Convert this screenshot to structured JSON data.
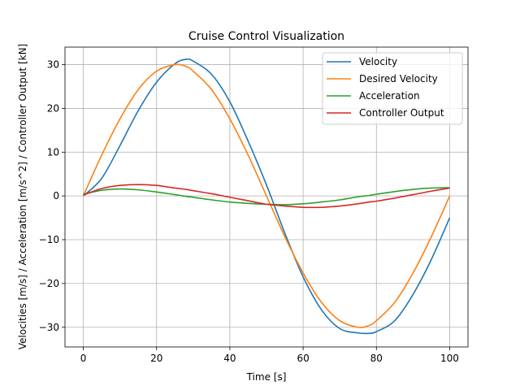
{
  "chart_data": {
    "type": "line",
    "title": "Cruise Control Visualization",
    "xlabel": "Time [s]",
    "ylabel": "Velocities [m/s] / Acceleration [m/s^2] / Controller Output [kN]",
    "xlim": [
      -5,
      105
    ],
    "ylim": [
      -34.5,
      34.0
    ],
    "xticks": [
      0,
      20,
      40,
      60,
      80,
      100
    ],
    "yticks": [
      -30,
      -20,
      -10,
      0,
      10,
      20,
      30
    ],
    "xtick_labels": [
      "0",
      "20",
      "40",
      "60",
      "80",
      "100"
    ],
    "ytick_labels": [
      "−30",
      "−20",
      "−10",
      "0",
      "10",
      "20",
      "30"
    ],
    "grid": true,
    "legend_position": "top-right",
    "x": [
      0,
      5,
      10,
      15,
      20,
      25,
      28,
      30,
      35,
      40,
      45,
      50,
      55,
      60,
      65,
      70,
      75,
      78,
      80,
      85,
      90,
      95,
      100
    ],
    "series": [
      {
        "name": "Velocity",
        "color": "#1f77b4",
        "values": [
          0.0,
          4.0,
          11.5,
          19.5,
          26.0,
          30.2,
          31.2,
          30.8,
          27.8,
          21.5,
          12.5,
          2.5,
          -8.5,
          -18.5,
          -26.0,
          -30.3,
          -31.3,
          -31.4,
          -31.0,
          -28.5,
          -22.5,
          -14.5,
          -5.0
        ]
      },
      {
        "name": "Desired Velocity",
        "color": "#ff7f0e",
        "values": [
          0.0,
          9.3,
          17.6,
          24.3,
          28.5,
          30.0,
          29.6,
          28.5,
          24.3,
          17.6,
          9.3,
          0.0,
          -9.3,
          -17.6,
          -24.3,
          -28.5,
          -30.0,
          -29.6,
          -28.5,
          -24.3,
          -17.6,
          -9.3,
          0.0
        ]
      },
      {
        "name": "Acceleration",
        "color": "#2ca02c",
        "values": [
          0.4,
          1.3,
          1.6,
          1.4,
          0.9,
          0.3,
          -0.1,
          -0.3,
          -0.9,
          -1.4,
          -1.7,
          -1.9,
          -2.0,
          -1.8,
          -1.4,
          -0.9,
          -0.2,
          0.1,
          0.4,
          1.0,
          1.5,
          1.8,
          1.9
        ]
      },
      {
        "name": "Controller Output",
        "color": "#d62728",
        "values": [
          0.2,
          1.7,
          2.4,
          2.6,
          2.4,
          1.8,
          1.5,
          1.2,
          0.5,
          -0.3,
          -1.1,
          -1.9,
          -2.3,
          -2.6,
          -2.6,
          -2.3,
          -1.8,
          -1.4,
          -1.2,
          -0.5,
          0.3,
          1.1,
          1.8
        ]
      }
    ]
  }
}
